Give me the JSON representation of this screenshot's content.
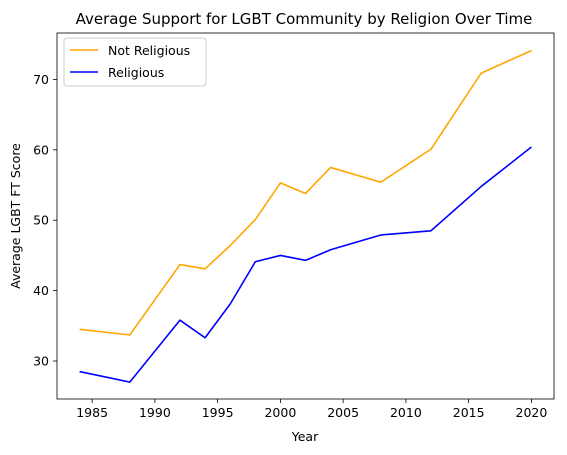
{
  "chart_data": {
    "type": "line",
    "title": "Average Support for LGBT Community by Religion Over Time",
    "xlabel": "Year",
    "ylabel": "Average LGBT FT Score",
    "xlim": [
      1982.2,
      2021.8
    ],
    "ylim": [
      24.6,
      76.6
    ],
    "xticks": [
      1985,
      1990,
      1995,
      2000,
      2005,
      2010,
      2015,
      2020
    ],
    "yticks": [
      30,
      40,
      50,
      60,
      70
    ],
    "grid": false,
    "legend_position": "upper-left",
    "x": [
      1984,
      1988,
      1992,
      1994,
      1996,
      1998,
      2000,
      2002,
      2004,
      2008,
      2012,
      2016,
      2020
    ],
    "series": [
      {
        "name": "Not Religious",
        "color": "#FFA500",
        "values": [
          34.5,
          33.7,
          43.7,
          43.1,
          46.4,
          50.1,
          55.3,
          53.8,
          57.5,
          55.4,
          60.1,
          70.9,
          74.1
        ]
      },
      {
        "name": "Religious",
        "color": "#0000FF",
        "values": [
          28.5,
          27.0,
          35.8,
          33.3,
          38.1,
          44.1,
          45.0,
          44.3,
          45.8,
          47.9,
          48.5,
          54.8,
          60.4
        ]
      }
    ]
  }
}
